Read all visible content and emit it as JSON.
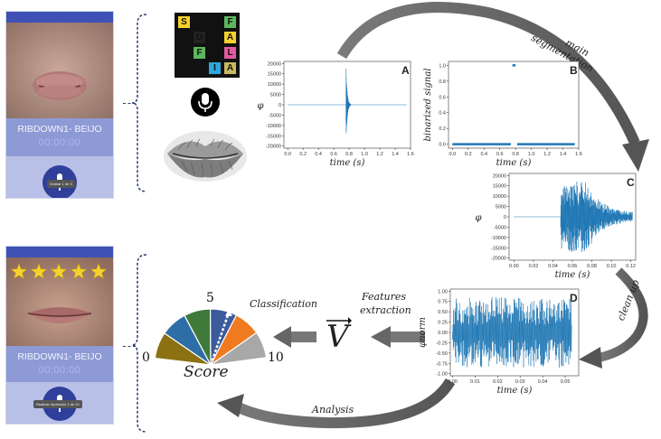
{
  "phone_top": {
    "title": "RIBDOWN1- BEIJO",
    "timer": "00:00:00",
    "toast": "Grabar 1 de 3"
  },
  "phone_bottom": {
    "title": "RIBDOWN1- BEIJO",
    "timer": "00:00:00",
    "toast": "Realizar repetición 1 de 10",
    "stars": 5
  },
  "letter_grid": [
    "S",
    "",
    "",
    "F",
    "",
    "O",
    "",
    "A",
    "",
    "F",
    "",
    "L",
    "",
    "",
    "I",
    "A"
  ],
  "arrows": {
    "main_segmentation_1": "main",
    "main_segmentation_2": "segmentation",
    "clean_up": "clean up",
    "features_1": "Features",
    "features_2": "extraction",
    "classification": "Classification",
    "analysis": "Analysis"
  },
  "vector_symbol": "V",
  "score": {
    "label": "Score",
    "min": "0",
    "max": "10",
    "mid": "5",
    "colors": [
      "#8b7112",
      "#2c6ea5",
      "#3f7a3a",
      "#3d5a9c",
      "#f07a20",
      "#a8a8a8"
    ]
  },
  "chart_data": [
    {
      "panel": "A",
      "type": "line",
      "ylabel": "φ",
      "xlabel": "time (s)",
      "xlim": [
        -0.05,
        1.6
      ],
      "ylim": [
        -21000,
        21000
      ],
      "xticks": [
        "0.0",
        "0.2",
        "0.4",
        "0.6",
        "0.8",
        "1.0",
        "1.2",
        "1.4",
        "1.6"
      ],
      "yticks": [
        "20000",
        "15000",
        "10000",
        "5000",
        "0",
        "-5000",
        "-10000",
        "-15000",
        "-20000"
      ],
      "color": "#1f77b4",
      "burst_start": 0.76,
      "burst_end": 0.82,
      "burst_peak": 19000
    },
    {
      "panel": "B",
      "type": "scatter",
      "ylabel": "binarized signal",
      "xlabel": "time (s)",
      "xlim": [
        -0.05,
        1.6
      ],
      "ylim": [
        -0.05,
        1.05
      ],
      "xticks": [
        "0.0",
        "0.2",
        "0.4",
        "0.6",
        "0.8",
        "1.0",
        "1.2",
        "1.4",
        "1.6"
      ],
      "yticks": [
        "1.0",
        "0.8",
        "0.6",
        "0.4",
        "0.2",
        "0.0"
      ],
      "color": "#1f77b4",
      "segment_x": [
        0.76,
        0.8
      ],
      "gap_x": [
        0.74,
        0.82
      ]
    },
    {
      "panel": "C",
      "type": "line",
      "ylabel": "φ",
      "xlabel": "time (s)",
      "xlim": [
        -0.005,
        0.125
      ],
      "ylim": [
        -21000,
        21000
      ],
      "xticks": [
        "0.00",
        "0.02",
        "0.04",
        "0.06",
        "0.08",
        "0.10",
        "0.12"
      ],
      "yticks": [
        "20000",
        "15000",
        "10000",
        "5000",
        "0",
        "-5000",
        "-10000",
        "-15000",
        "-20000"
      ],
      "color": "#1f77b4",
      "burst_start": 0.048,
      "peak": 17000
    },
    {
      "panel": "D",
      "type": "line",
      "ylabel": "φnorm",
      "xlabel": "time (s)",
      "xlim": [
        -0.001,
        0.056
      ],
      "ylim": [
        -1.05,
        1.05
      ],
      "xticks": [
        "0.00",
        "0.01",
        "0.02",
        "0.03",
        "0.04",
        "0.05"
      ],
      "yticks": [
        "1.00",
        "0.75",
        "0.50",
        "0.25",
        "0.00",
        "-0.25",
        "-0.50",
        "-0.75",
        "-1.00"
      ],
      "color": "#1f77b4"
    }
  ]
}
